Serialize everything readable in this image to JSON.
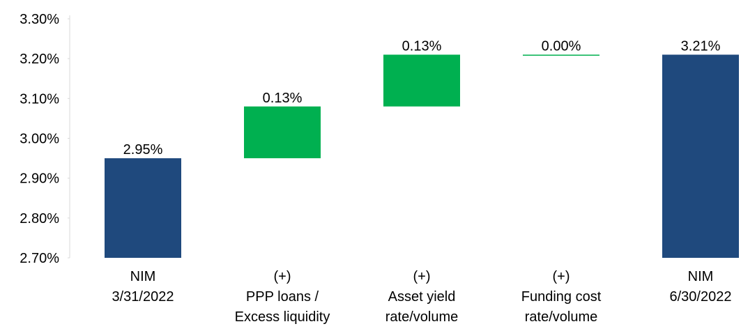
{
  "chart_data": {
    "type": "waterfall",
    "categories": [
      "NIM\n3/31/2022",
      "(+)\nPPP loans /\nExcess liquidity",
      "(+)\nAsset yield\nrate/volume",
      "(+)\nFunding cost\nrate/volume",
      "NIM\n6/30/2022"
    ],
    "values": [
      2.95,
      0.13,
      0.13,
      0.0,
      3.21
    ],
    "value_labels": [
      "2.95%",
      "0.13%",
      "0.13%",
      "0.00%",
      "3.21%"
    ],
    "measure": [
      "absolute",
      "relative",
      "relative",
      "relative",
      "total"
    ],
    "colors": [
      "#1f497d",
      "#00b050",
      "#00b050",
      "#00b050",
      "#1f497d"
    ],
    "ylim": [
      2.7,
      3.3
    ],
    "yticks": [
      {
        "value": 2.7,
        "label": "2.70%"
      },
      {
        "value": 2.8,
        "label": "2.80%"
      },
      {
        "value": 2.9,
        "label": "2.90%"
      },
      {
        "value": 3.0,
        "label": "3.00%"
      },
      {
        "value": 3.1,
        "label": "3.10%"
      },
      {
        "value": 3.2,
        "label": "3.20%"
      },
      {
        "value": 3.3,
        "label": "3.30%"
      }
    ],
    "grid": false
  }
}
